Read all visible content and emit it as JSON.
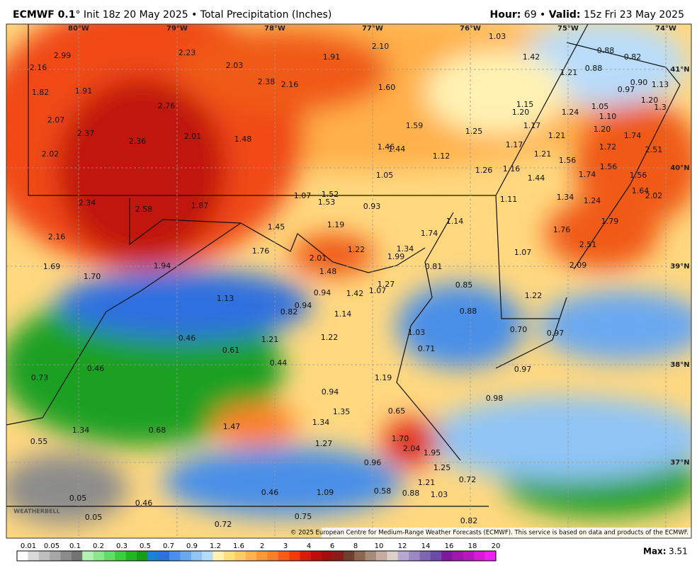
{
  "header": {
    "model": "ECMWF 0.1",
    "subtitle": "° Init 18z 20 May 2025 • Total Precipitation (Inches)",
    "hour_label": "Hour:",
    "hour": "69 •",
    "valid_label": "Valid:",
    "valid": "15z Fri 23 May 2025"
  },
  "map": {
    "lon_labels": [
      "80°W",
      "79°W",
      "78°W",
      "77°W",
      "76°W",
      "75°W",
      "74°W"
    ],
    "lat_labels": [
      "41°N",
      "40°N",
      "39°N",
      "38°N",
      "37°N"
    ],
    "values": [
      "2.99",
      "2.16",
      "1.82",
      "1.91",
      "2.07",
      "2.37",
      "2.02",
      "2.23",
      "2.03",
      "2.76",
      "2.36",
      "2.01",
      "2.38",
      "2.16",
      "1.48",
      "1.91",
      "2.10",
      "1.60",
      "1.59",
      "1.46",
      "1.44",
      "1.12",
      "1.05",
      "1.25",
      "1.26",
      "1.03",
      "1.42",
      "1.21",
      "0.88",
      "0.82",
      "0.88",
      "0.90",
      "1.13",
      "0.97",
      "1.20",
      "1.3",
      "1.15",
      "1.20",
      "1.24",
      "1.05",
      "1.10",
      "1.17",
      "1.21",
      "1.20",
      "1.74",
      "1.72",
      "1.17",
      "1.21",
      "1.56",
      "2.51",
      "1.16",
      "1.44",
      "1.74",
      "1.56",
      "1.56",
      "1.64",
      "2.02",
      "1.34",
      "1.24",
      "1.79",
      "1.11",
      "1.07",
      "1.52",
      "1.53",
      "0.93",
      "2.34",
      "2.58",
      "1.87",
      "1.45",
      "1.19",
      "1.76",
      "2.01",
      "1.22",
      "1.34",
      "1.99",
      "1.48",
      "1.74",
      "1.14",
      "1.76",
      "2.51",
      "1.07",
      "2.09",
      "0.81",
      "0.85",
      "1.27",
      "1.42",
      "1.07",
      "0.94",
      "0.94",
      "0.82",
      "1.13",
      "1.14",
      "0.88",
      "1.22",
      "0.70",
      "0.97",
      "1.03",
      "0.71",
      "1.21",
      "1.22",
      "0.46",
      "0.61",
      "0.44",
      "2.16",
      "1.69",
      "1.70",
      "1.94",
      "0.46",
      "0.73",
      "1.19",
      "0.97",
      "0.98",
      "0.94",
      "1.35",
      "1.34",
      "0.65",
      "1.47",
      "1.34",
      "0.68",
      "0.55",
      "1.27",
      "1.70",
      "2.04",
      "1.95",
      "0.96",
      "1.25",
      "0.72",
      "1.21",
      "0.88",
      "1.03",
      "0.58",
      "1.09",
      "0.46",
      "0.05",
      "0.46",
      "0.05",
      "0.75",
      "0.72",
      "0.82"
    ],
    "logo": "WEATHERBELL",
    "credit": "© 2025 European Centre for Medium-Range Weather Forecasts (ECMWF). This service is based on data and products of the ECMWF."
  },
  "legend": {
    "labels": [
      "0.01",
      "0.05",
      "0.1",
      "0.2",
      "0.3",
      "0.5",
      "0.7",
      "0.9",
      "1.2",
      "1.6",
      "2",
      "3",
      "4",
      "6",
      "8",
      "10",
      "12",
      "14",
      "16",
      "18",
      "20"
    ],
    "colors": [
      "#ffffff",
      "#d9d9d9",
      "#bfbfbf",
      "#a6a6a6",
      "#8c8c8c",
      "#737373",
      "#b3f0b3",
      "#8ce68c",
      "#66d966",
      "#40cc40",
      "#26b326",
      "#1a991a",
      "#1f7fd9",
      "#2f6fe0",
      "#4a8fe8",
      "#6aa8f0",
      "#8fc4f5",
      "#b3dcfa",
      "#fff2b3",
      "#ffe080",
      "#ffcc66",
      "#ffb34d",
      "#ff9933",
      "#ff7f26",
      "#ff5a1a",
      "#f23a10",
      "#d91c0a",
      "#bf0d0d",
      "#a30d0d",
      "#8c1a1a",
      "#6e4030",
      "#8c6650",
      "#a88c7a",
      "#c4aca0",
      "#dcd0c8",
      "#b8a8d0",
      "#9c88c4",
      "#7f66b3",
      "#6a4ca6",
      "#7f1a99",
      "#9c1aa8",
      "#b81ab8",
      "#d91ad9",
      "#f21ff2"
    ],
    "max_label": "Max:",
    "max": "3.51"
  }
}
